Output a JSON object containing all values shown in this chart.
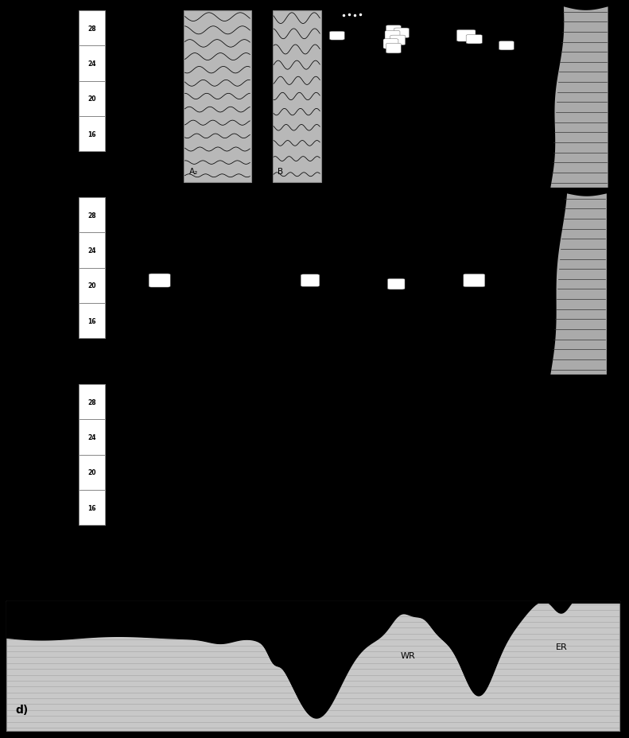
{
  "bg_color": "#000000",
  "temp_labels": [
    "28",
    "24",
    "20",
    "16"
  ],
  "panel_d_label": "d)",
  "WR_label": "WR",
  "ER_label": "ER",
  "col_A2_label": "A₂",
  "col_B_label": "B",
  "figure_width": 7.91,
  "figure_height": 9.29,
  "dpi": 100,
  "gray_bathy": "#aaaaaa",
  "light_gray": "#c0c0c0",
  "panel_d_bg": "#c8c8c8"
}
